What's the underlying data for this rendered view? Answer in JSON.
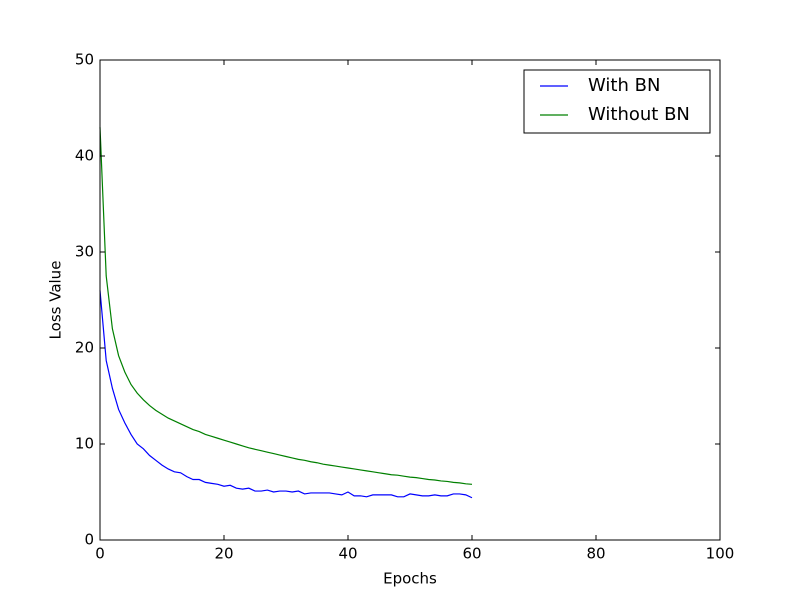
{
  "chart_data": {
    "type": "line",
    "x_label": "Epochs",
    "y_label": "Loss Value",
    "x": [
      0,
      1,
      2,
      3,
      4,
      5,
      6,
      7,
      8,
      9,
      10,
      11,
      12,
      13,
      14,
      15,
      16,
      17,
      18,
      19,
      20,
      21,
      22,
      23,
      24,
      25,
      26,
      27,
      28,
      29,
      30,
      31,
      32,
      33,
      34,
      35,
      36,
      37,
      38,
      39,
      40,
      41,
      42,
      43,
      44,
      45,
      46,
      47,
      48,
      49,
      50,
      51,
      52,
      53,
      54,
      55,
      56,
      57,
      58,
      59,
      60
    ],
    "series": [
      {
        "name": "With BN",
        "color": "#0000ff",
        "values": [
          26,
          18.7,
          15.8,
          13.6,
          12.2,
          11,
          10,
          9.5,
          8.8,
          8.3,
          7.8,
          7.4,
          7.1,
          7.0,
          6.6,
          6.3,
          6.3,
          6.0,
          5.9,
          5.8,
          5.6,
          5.7,
          5.4,
          5.3,
          5.4,
          5.1,
          5.1,
          5.2,
          5.0,
          5.1,
          5.1,
          5.0,
          5.1,
          4.8,
          4.9,
          4.9,
          4.9,
          4.9,
          4.8,
          4.7,
          5.0,
          4.6,
          4.6,
          4.5,
          4.7,
          4.7,
          4.7,
          4.7,
          4.5,
          4.5,
          4.8,
          4.7,
          4.6,
          4.6,
          4.7,
          4.6,
          4.6,
          4.8,
          4.8,
          4.7,
          4.4
        ]
      },
      {
        "name": "Without BN",
        "color": "#008000",
        "values": [
          43,
          27.5,
          22,
          19.2,
          17.5,
          16.2,
          15.3,
          14.6,
          14.0,
          13.5,
          13.1,
          12.7,
          12.4,
          12.1,
          11.8,
          11.5,
          11.3,
          11.0,
          10.8,
          10.6,
          10.4,
          10.2,
          10.0,
          9.8,
          9.6,
          9.45,
          9.3,
          9.15,
          9.0,
          8.85,
          8.7,
          8.55,
          8.4,
          8.3,
          8.15,
          8.05,
          7.9,
          7.8,
          7.7,
          7.6,
          7.5,
          7.4,
          7.3,
          7.2,
          7.1,
          7.0,
          6.9,
          6.8,
          6.75,
          6.65,
          6.55,
          6.5,
          6.4,
          6.3,
          6.25,
          6.15,
          6.1,
          6.0,
          5.95,
          5.85,
          5.8
        ]
      }
    ],
    "xlim": [
      0,
      100
    ],
    "xticks": [
      0,
      20,
      40,
      60,
      80,
      100
    ],
    "ylim": [
      0,
      50
    ],
    "yticks": [
      0,
      10,
      20,
      30,
      40,
      50
    ],
    "legend": "upper right"
  }
}
